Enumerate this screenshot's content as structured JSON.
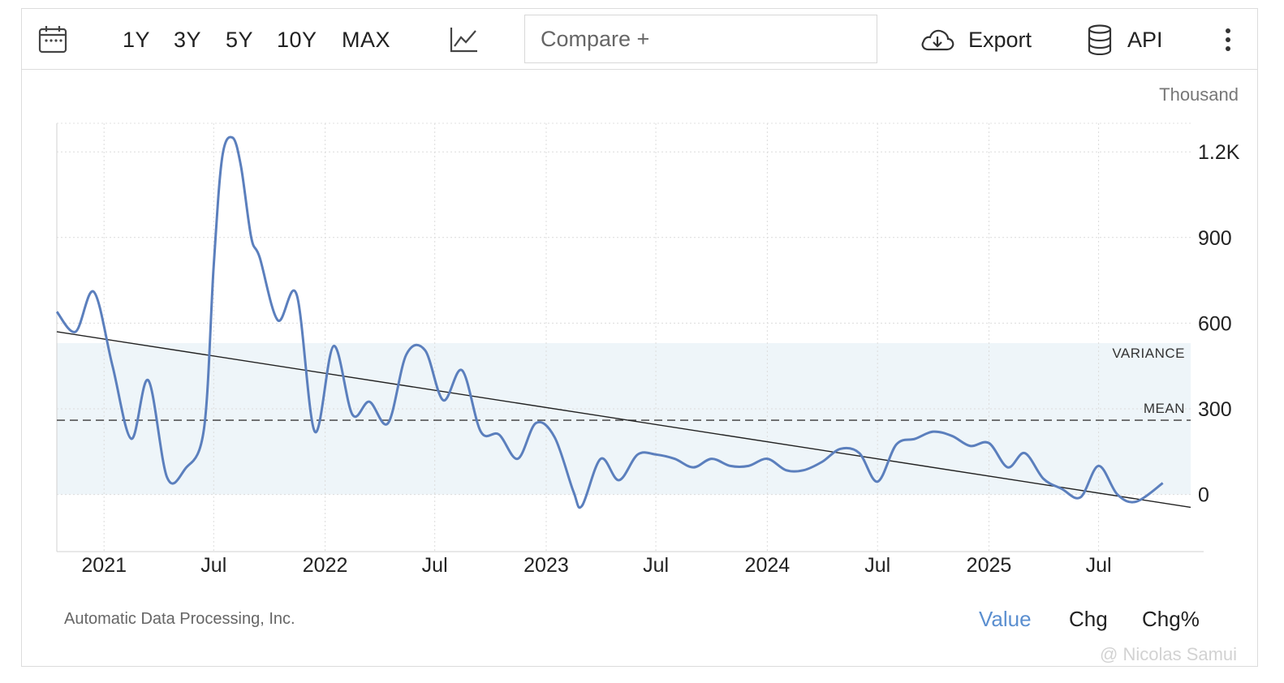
{
  "toolbar": {
    "calendar_icon": "calendar-icon",
    "ranges": [
      "1Y",
      "3Y",
      "5Y",
      "10Y",
      "MAX"
    ],
    "chart_type_icon": "line-chart-icon",
    "compare_label": "Compare +",
    "export_label": "Export",
    "export_icon": "cloud-download-icon",
    "api_label": "API",
    "api_icon": "database-icon",
    "more_icon": "vertical-dots-icon"
  },
  "unit_label": "Thousand",
  "source_label": "Automatic Data Processing, Inc.",
  "tabs": {
    "value": "Value",
    "chg": "Chg",
    "chgpct": "Chg%"
  },
  "watermark": "@ Nicolas Samui",
  "colors": {
    "series": "#5b7fbd",
    "band": "#eef5f9",
    "active_tab": "#5b8fd0",
    "trend": "#222222",
    "mean": "#555555"
  },
  "chart_data": {
    "type": "line",
    "x_tick_labels": [
      "2021",
      "Jul",
      "2022",
      "Jul",
      "2023",
      "Jul",
      "2024",
      "Jul",
      "2025",
      "Jul"
    ],
    "x_tick_dates": [
      "2021-01-01",
      "2021-07-01",
      "2022-01-01",
      "2022-07-01",
      "2023-01-01",
      "2023-07-01",
      "2024-01-01",
      "2024-07-01",
      "2025-01-01",
      "2025-07-01"
    ],
    "y_ticks": [
      0,
      300,
      600,
      900,
      1200
    ],
    "y_tick_labels": [
      "0",
      "300",
      "600",
      "900",
      "1.2K"
    ],
    "ylim": [
      -200,
      1300
    ],
    "xlim": [
      "2020-10-15",
      "2025-11-30"
    ],
    "grid": true,
    "mean_label": "MEAN",
    "variance_label": "VARIANCE",
    "mean": 260,
    "variance_band": [
      0,
      530
    ],
    "trend_line": [
      [
        "2020-10-15",
        570
      ],
      [
        "2025-11-30",
        -45
      ]
    ],
    "series": [
      {
        "points": [
          [
            "2020-10-15",
            640
          ],
          [
            "2020-11-15",
            570
          ],
          [
            "2020-12-15",
            710
          ],
          [
            "2021-01-15",
            450
          ],
          [
            "2021-02-15",
            195
          ],
          [
            "2021-03-15",
            400
          ],
          [
            "2021-04-15",
            60
          ],
          [
            "2021-05-15",
            90
          ],
          [
            "2021-06-15",
            230
          ],
          [
            "2021-07-01",
            800
          ],
          [
            "2021-07-15",
            1180
          ],
          [
            "2021-08-01",
            1250
          ],
          [
            "2021-08-15",
            1150
          ],
          [
            "2021-09-01",
            900
          ],
          [
            "2021-09-15",
            830
          ],
          [
            "2021-10-15",
            610
          ],
          [
            "2021-11-15",
            700
          ],
          [
            "2021-12-15",
            220
          ],
          [
            "2022-01-15",
            520
          ],
          [
            "2022-02-15",
            280
          ],
          [
            "2022-03-15",
            325
          ],
          [
            "2022-04-15",
            250
          ],
          [
            "2022-05-15",
            490
          ],
          [
            "2022-06-15",
            505
          ],
          [
            "2022-07-15",
            330
          ],
          [
            "2022-08-15",
            435
          ],
          [
            "2022-09-15",
            220
          ],
          [
            "2022-10-15",
            210
          ],
          [
            "2022-11-15",
            125
          ],
          [
            "2022-12-15",
            250
          ],
          [
            "2023-01-15",
            200
          ],
          [
            "2023-02-15",
            10
          ],
          [
            "2023-03-01",
            -40
          ],
          [
            "2023-04-01",
            125
          ],
          [
            "2023-05-01",
            50
          ],
          [
            "2023-06-01",
            140
          ],
          [
            "2023-07-01",
            140
          ],
          [
            "2023-08-01",
            125
          ],
          [
            "2023-09-01",
            95
          ],
          [
            "2023-10-01",
            125
          ],
          [
            "2023-11-01",
            100
          ],
          [
            "2023-12-01",
            100
          ],
          [
            "2024-01-01",
            125
          ],
          [
            "2024-02-01",
            85
          ],
          [
            "2024-03-01",
            85
          ],
          [
            "2024-04-01",
            115
          ],
          [
            "2024-05-01",
            160
          ],
          [
            "2024-06-01",
            145
          ],
          [
            "2024-07-01",
            45
          ],
          [
            "2024-08-01",
            175
          ],
          [
            "2024-09-01",
            195
          ],
          [
            "2024-10-01",
            220
          ],
          [
            "2024-11-01",
            205
          ],
          [
            "2024-12-01",
            170
          ],
          [
            "2025-01-01",
            180
          ],
          [
            "2025-02-01",
            95
          ],
          [
            "2025-03-01",
            145
          ],
          [
            "2025-04-01",
            55
          ],
          [
            "2025-05-01",
            20
          ],
          [
            "2025-06-01",
            -10
          ],
          [
            "2025-07-01",
            100
          ],
          [
            "2025-08-01",
            0
          ],
          [
            "2025-09-01",
            -25
          ],
          [
            "2025-10-15",
            40
          ]
        ]
      }
    ]
  }
}
